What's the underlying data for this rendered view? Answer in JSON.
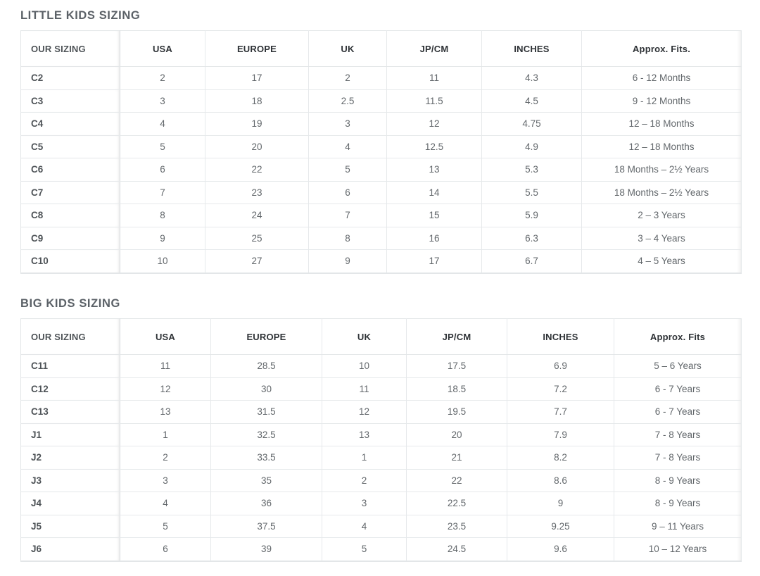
{
  "little_kids": {
    "title": "LITTLE KIDS SIZING",
    "headers": [
      "OUR SIZING",
      "USA",
      "EUROPE",
      "UK",
      "JP/CM",
      "INCHES",
      "Approx. Fits."
    ],
    "rows": [
      [
        "C2",
        "2",
        "17",
        "2",
        "11",
        "4.3",
        "6 - 12 Months"
      ],
      [
        "C3",
        "3",
        "18",
        "2.5",
        "11.5",
        "4.5",
        "9 - 12 Months"
      ],
      [
        "C4",
        "4",
        "19",
        "3",
        "12",
        "4.75",
        "12 – 18 Months"
      ],
      [
        "C5",
        "5",
        "20",
        "4",
        "12.5",
        "4.9",
        "12 – 18 Months"
      ],
      [
        "C6",
        "6",
        "22",
        "5",
        "13",
        "5.3",
        "18 Months – 2½ Years"
      ],
      [
        "C7",
        "7",
        "23",
        "6",
        "14",
        "5.5",
        "18 Months – 2½ Years"
      ],
      [
        "C8",
        "8",
        "24",
        "7",
        "15",
        "5.9",
        "2 – 3 Years"
      ],
      [
        "C9",
        "9",
        "25",
        "8",
        "16",
        "6.3",
        "3 – 4 Years"
      ],
      [
        "C10",
        "10",
        "27",
        "9",
        "17",
        "6.7",
        "4 – 5 Years"
      ]
    ]
  },
  "big_kids": {
    "title": "BIG KIDS SIZING",
    "headers": [
      "OUR SIZING",
      "USA",
      "EUROPE",
      "UK",
      "JP/CM",
      "INCHES",
      "Approx. Fits"
    ],
    "rows": [
      [
        "C11",
        "11",
        "28.5",
        "10",
        "17.5",
        "6.9",
        "5 – 6 Years"
      ],
      [
        "C12",
        "12",
        "30",
        "11",
        "18.5",
        "7.2",
        "6 - 7 Years"
      ],
      [
        "C13",
        "13",
        "31.5",
        "12",
        "19.5",
        "7.7",
        "6 - 7 Years"
      ],
      [
        "J1",
        "1",
        "32.5",
        "13",
        "20",
        "7.9",
        "7 - 8 Years"
      ],
      [
        "J2",
        "2",
        "33.5",
        "1",
        "21",
        "8.2",
        "7 - 8 Years"
      ],
      [
        "J3",
        "3",
        "35",
        "2",
        "22",
        "8.6",
        "8 - 9 Years"
      ],
      [
        "J4",
        "4",
        "36",
        "3",
        "22.5",
        "9",
        "8 - 9 Years"
      ],
      [
        "J5",
        "5",
        "37.5",
        "4",
        "23.5",
        "9.25",
        "9 – 11 Years"
      ],
      [
        "J6",
        "6",
        "39",
        "5",
        "24.5",
        "9.6",
        "10 – 12 Years"
      ]
    ]
  }
}
